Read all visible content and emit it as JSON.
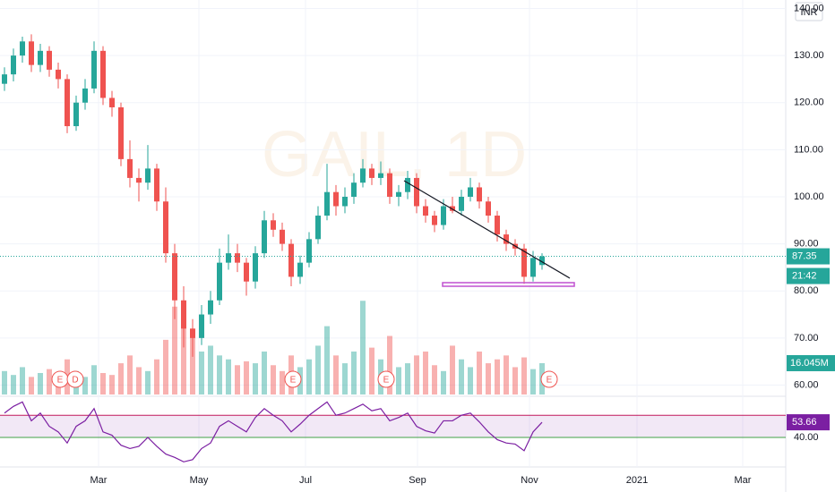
{
  "chart_data": {
    "type": "candlestick",
    "watermark": "GAIL, 1D",
    "currency": "INR",
    "countdown": "21:42",
    "volume_label": "16.045M",
    "open": [
      124,
      126,
      130,
      133,
      128,
      131,
      127,
      125,
      115,
      120,
      123,
      131,
      121,
      119,
      108,
      104,
      103,
      106,
      99,
      88,
      78,
      72,
      70,
      75,
      78,
      86,
      88,
      86,
      82,
      88,
      95,
      93,
      90,
      83,
      86,
      91,
      96,
      101,
      98,
      100,
      103,
      106,
      104,
      105,
      100,
      101,
      104,
      98,
      96,
      94,
      98,
      97,
      100,
      102,
      99,
      96,
      92,
      90,
      89,
      83,
      85.5
    ],
    "high": [
      127.5,
      131.5,
      134,
      134.5,
      132.5,
      132,
      128.5,
      126,
      121.5,
      125,
      133,
      132,
      122.5,
      120,
      112,
      106,
      111,
      107,
      102,
      90,
      81,
      74,
      77,
      80,
      89,
      92,
      90,
      87,
      89.5,
      97,
      96.5,
      94.5,
      91,
      87.5,
      92.5,
      98,
      107,
      102.5,
      102,
      105,
      108,
      107,
      107.5,
      106,
      102.5,
      105.5,
      105,
      99.5,
      97,
      99.5,
      100,
      101.5,
      104,
      103,
      100,
      97,
      93,
      91,
      90,
      88.5,
      88
    ],
    "low": [
      122.5,
      124.5,
      128.5,
      126.5,
      126.5,
      125.5,
      123,
      113.5,
      114,
      118.5,
      122,
      119.5,
      117,
      106.5,
      102,
      99,
      101.5,
      97,
      86,
      74,
      68,
      66,
      68.5,
      73,
      77,
      84.5,
      84,
      79,
      80.5,
      87,
      91.5,
      88.5,
      81,
      81.5,
      85,
      90,
      95,
      96,
      96.5,
      98.5,
      102,
      102.5,
      102.5,
      98.5,
      98,
      99.5,
      96.5,
      94.5,
      92.5,
      93,
      96.5,
      96,
      99,
      97.5,
      94.5,
      90.5,
      88.5,
      87.5,
      81.5,
      82,
      84.5
    ],
    "close": [
      126,
      130,
      133,
      128,
      131,
      127,
      125,
      115,
      120,
      123,
      131,
      121,
      119,
      108,
      104,
      103,
      106,
      99,
      88,
      78,
      72,
      70,
      75,
      78,
      86,
      88,
      86,
      82,
      88,
      95,
      93,
      90,
      83,
      86,
      91,
      96,
      101,
      98,
      100,
      103,
      106,
      104,
      105,
      100,
      101,
      104,
      98,
      96,
      94,
      98,
      97,
      100,
      102,
      99,
      96,
      92,
      90,
      89,
      83,
      87,
      87.35
    ],
    "volume": [
      12,
      10,
      14,
      9,
      11,
      13,
      10,
      18,
      12,
      9,
      15,
      11,
      10,
      16,
      20,
      14,
      12,
      18,
      28,
      45,
      38,
      30,
      22,
      25,
      20,
      18,
      15,
      17,
      16,
      22,
      15,
      12,
      20,
      14,
      18,
      25,
      35,
      20,
      16,
      22,
      48,
      24,
      18,
      30,
      14,
      16,
      20,
      22,
      15,
      12,
      25,
      18,
      14,
      22,
      16,
      18,
      20,
      14,
      19,
      13,
      16.045
    ],
    "rsi": [
      62,
      68,
      72,
      55,
      62,
      50,
      45,
      35,
      50,
      55,
      66,
      45,
      42,
      33,
      30,
      32,
      40,
      32,
      25,
      22,
      18,
      20,
      30,
      35,
      50,
      55,
      50,
      45,
      58,
      66,
      60,
      55,
      45,
      52,
      60,
      66,
      72,
      60,
      62,
      66,
      70,
      64,
      66,
      55,
      58,
      62,
      50,
      46,
      44,
      55,
      55,
      60,
      62,
      54,
      45,
      38,
      35,
      34,
      28,
      45,
      53.66
    ],
    "rsi_band": [
      40,
      60
    ],
    "rsi_label": "53.66",
    "events": [
      {
        "label": "E",
        "x": 6.2
      },
      {
        "label": "D",
        "x": 7.9
      },
      {
        "label": "E",
        "x": 32.2
      },
      {
        "label": "E",
        "x": 42.6
      },
      {
        "label": "E",
        "x": 60.8
      }
    ],
    "xlim": [
      -0.5,
      87.2
    ],
    "xticks": [
      {
        "value": 10.5,
        "label": "Mar"
      },
      {
        "value": 21.7,
        "label": "May"
      },
      {
        "value": 33.6,
        "label": "Jul"
      },
      {
        "value": 46.1,
        "label": "Sep"
      },
      {
        "value": 58.6,
        "label": "Nov"
      },
      {
        "value": 70.6,
        "label": "2021"
      },
      {
        "value": 82.4,
        "label": "Mar"
      }
    ],
    "ylim": [
      58,
      141.8
    ],
    "yticks": [
      {
        "value": 60,
        "label": "60.00"
      },
      {
        "value": 70,
        "label": "70.00"
      },
      {
        "value": 80,
        "label": "80.00"
      },
      {
        "value": 90,
        "label": "90.00"
      },
      {
        "value": 100,
        "label": "100.00"
      },
      {
        "value": 110,
        "label": "110.00"
      },
      {
        "value": 120,
        "label": "120.00"
      },
      {
        "value": 130,
        "label": "130.00"
      },
      {
        "value": 140,
        "label": "140.00"
      }
    ],
    "last_price_label": "87.35",
    "volume_lim": [
      0,
      50.4
    ],
    "rsi_lim": [
      15,
      75.5
    ],
    "rsi_ticks": [
      {
        "value": 40,
        "label": "40.00"
      }
    ],
    "up_color": "#26a69a",
    "down_color": "#ef5350",
    "rsi_color": "#7b1fa2",
    "grid": true
  }
}
